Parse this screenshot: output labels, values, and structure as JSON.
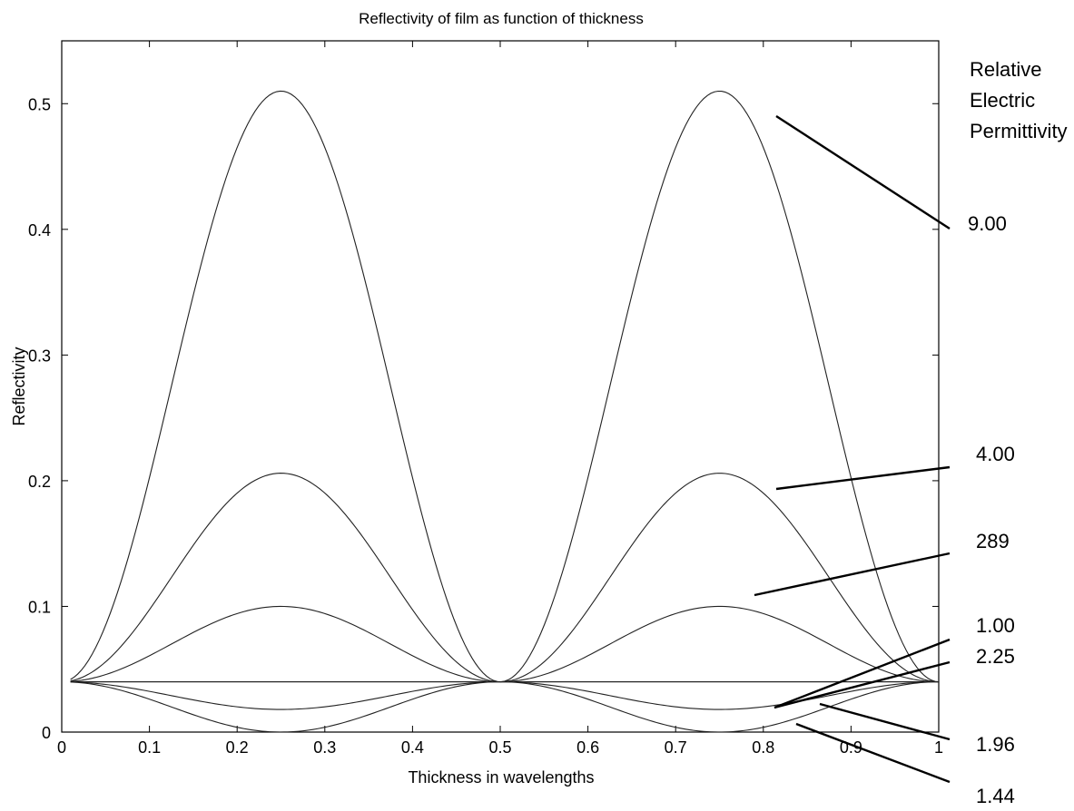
{
  "chart_data": {
    "type": "line",
    "title": "Reflectivity of film as function of thickness",
    "xlabel": "Thickness in wavelengths",
    "ylabel": "Reflectivity",
    "xlim": [
      0,
      1
    ],
    "ylim": [
      0,
      0.55
    ],
    "xticks": [
      "0",
      "0.1",
      "0.2",
      "0.3",
      "0.4",
      "0.5",
      "0.6",
      "0.7",
      "0.8",
      "0.9",
      "1"
    ],
    "yticks": [
      "0",
      "0.1",
      "0.2",
      "0.3",
      "0.4",
      "0.5"
    ],
    "grid": false,
    "legend_title": [
      "Relative",
      "Electric",
      "Permittivity"
    ],
    "series": [
      {
        "name": "9.00",
        "x": [
          0.01,
          0.25,
          0.5,
          0.75,
          1.0
        ],
        "y": [
          0.04,
          0.51,
          0.04,
          0.51,
          0.04
        ]
      },
      {
        "name": "4.00",
        "x": [
          0.01,
          0.25,
          0.5,
          0.75,
          1.0
        ],
        "y": [
          0.04,
          0.206,
          0.04,
          0.206,
          0.04
        ]
      },
      {
        "name": "289",
        "x": [
          0.01,
          0.25,
          0.5,
          0.75,
          1.0
        ],
        "y": [
          0.04,
          0.1,
          0.04,
          0.1,
          0.04
        ]
      },
      {
        "name": "1.00",
        "x": [
          0.01,
          0.25,
          0.5,
          0.75,
          1.0
        ],
        "y": [
          0.04,
          0.04,
          0.04,
          0.04,
          0.04
        ]
      },
      {
        "name": "2.25",
        "x": [
          0.01,
          0.25,
          0.5,
          0.75,
          1.0
        ],
        "y": [
          0.04,
          0.04,
          0.04,
          0.04,
          0.04
        ]
      },
      {
        "name": "1.96",
        "x": [
          0.01,
          0.25,
          0.5,
          0.75,
          1.0
        ],
        "y": [
          0.04,
          0.018,
          0.04,
          0.018,
          0.04
        ]
      },
      {
        "name": "1.44",
        "x": [
          0.01,
          0.25,
          0.5,
          0.75,
          1.0
        ],
        "y": [
          0.04,
          0.0,
          0.04,
          0.0,
          0.04
        ]
      }
    ]
  }
}
